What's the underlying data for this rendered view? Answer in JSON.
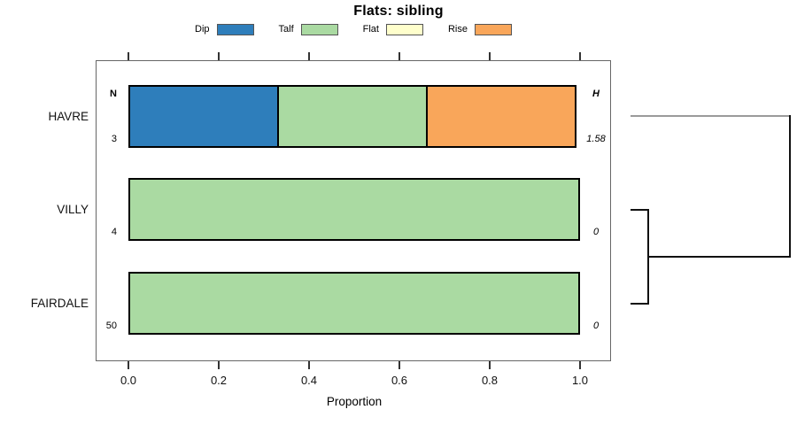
{
  "title": "Flats: sibling",
  "legend": {
    "items": [
      {
        "label": "Dip",
        "color": "#2E7EBB"
      },
      {
        "label": "Talf",
        "color": "#AADAA2"
      },
      {
        "label": "Flat",
        "color": "#FFFFCC"
      },
      {
        "label": "Rise",
        "color": "#F9A65A"
      }
    ]
  },
  "annotations": {
    "n_header": "N",
    "h_header": "H"
  },
  "axis": {
    "xlabel": "Proportion",
    "tick_labels": [
      "0.0",
      "0.2",
      "0.4",
      "0.6",
      "0.8",
      "1.0"
    ]
  },
  "chart_data": {
    "type": "bar",
    "orientation": "horizontal",
    "stacked": true,
    "title": "Flats: sibling",
    "xlabel": "Proportion",
    "xlim": [
      0,
      1
    ],
    "x_ticks": [
      0.0,
      0.2,
      0.4,
      0.6,
      0.8,
      1.0
    ],
    "grid": false,
    "legend_position": "top",
    "segment_names": [
      "Dip",
      "Talf",
      "Flat",
      "Rise"
    ],
    "palette": {
      "Dip": "#2E7EBB",
      "Talf": "#AADAA2",
      "Flat": "#FFFFCC",
      "Rise": "#F9A65A"
    },
    "categories": [
      "HAVRE",
      "VILLY",
      "FAIRDALE"
    ],
    "rows": [
      {
        "label": "HAVRE",
        "n": "3",
        "h": "1.58",
        "segments": [
          {
            "name": "Dip",
            "value": 0.333
          },
          {
            "name": "Talf",
            "value": 0.334
          },
          {
            "name": "Rise",
            "value": 0.333
          }
        ]
      },
      {
        "label": "VILLY",
        "n": "4",
        "h": "0",
        "segments": [
          {
            "name": "Talf",
            "value": 1.0
          }
        ]
      },
      {
        "label": "FAIRDALE",
        "n": "50",
        "h": "0",
        "segments": [
          {
            "name": "Talf",
            "value": 1.0
          }
        ]
      }
    ],
    "dendrogram": {
      "joins": [
        {
          "members": [
            "VILLY",
            "FAIRDALE"
          ],
          "height": 0
        },
        {
          "members": [
            "HAVRE",
            "VILLY+FAIRDALE"
          ],
          "height": 1.58
        }
      ]
    }
  }
}
